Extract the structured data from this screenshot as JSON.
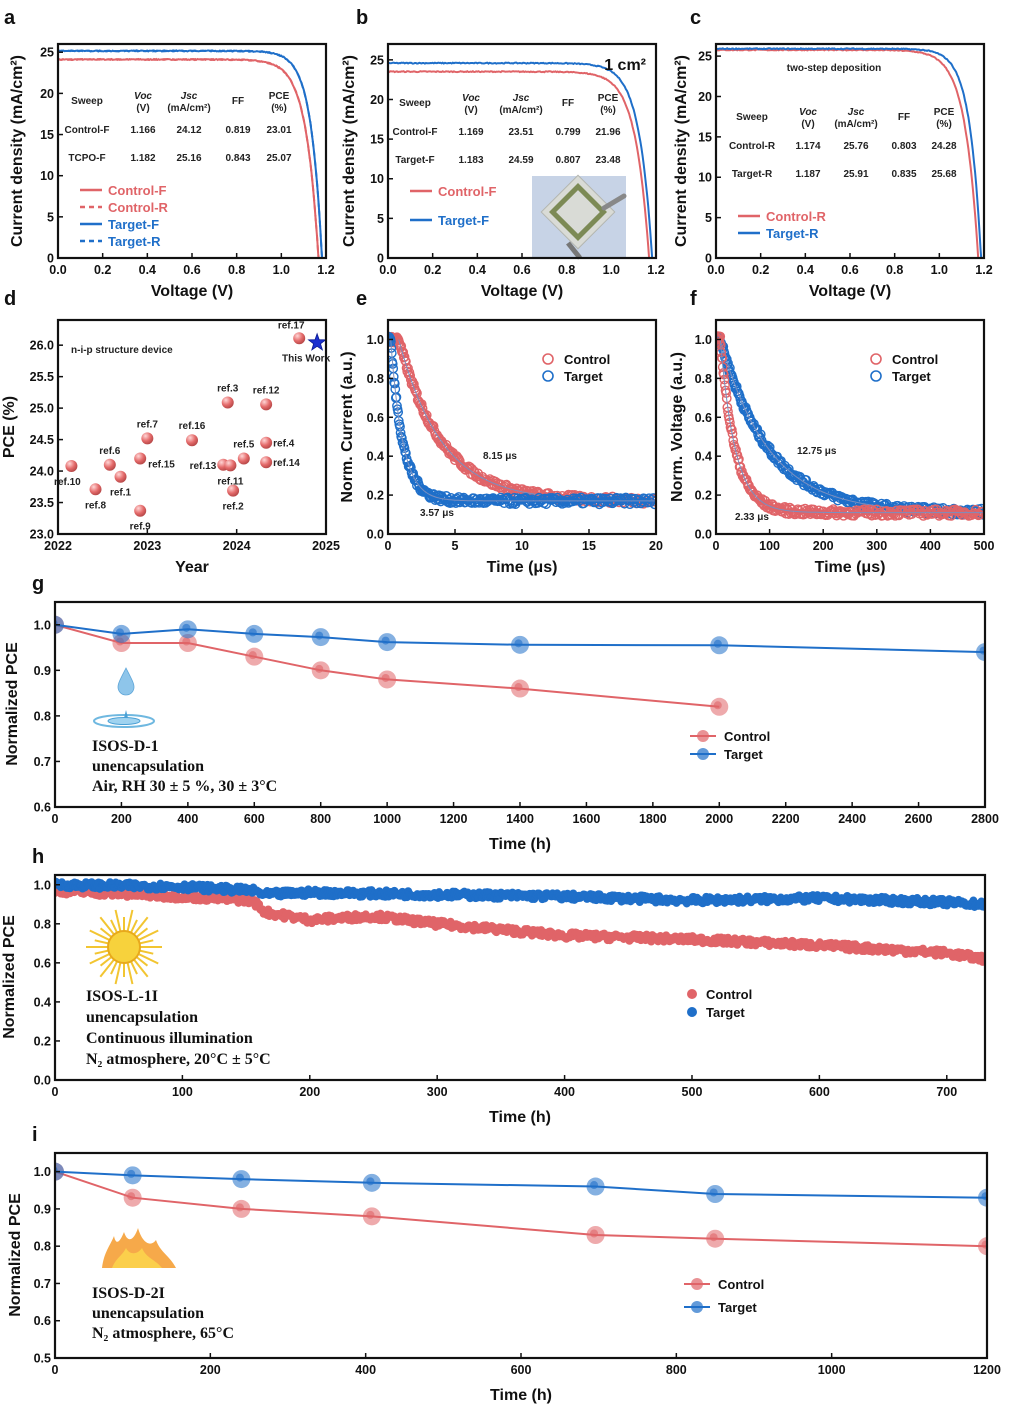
{
  "colors": {
    "control": "#e06468",
    "target": "#1f6fc9",
    "target_light": "#4a90e0",
    "control_light": "#f0999b",
    "this_work": "#1a2fd0"
  },
  "chart_data": [
    {
      "id": "a",
      "panel_label": "a",
      "type": "line",
      "xlabel": "Voltage (V)",
      "ylabel": "Current density (mA/cm²)",
      "xlim": [
        0,
        1.2
      ],
      "ylim": [
        0,
        26
      ],
      "xticks": [
        "0.0",
        "0.2",
        "0.4",
        "0.6",
        "0.8",
        "1.0",
        "1.2"
      ],
      "xtick_values": [
        0,
        0.2,
        0.4,
        0.6,
        0.8,
        1.0,
        1.2
      ],
      "yticks": [
        "0",
        "5",
        "10",
        "15",
        "20",
        "25"
      ],
      "ytick_values": [
        0,
        5,
        10,
        15,
        20,
        25
      ],
      "series": [
        {
          "name": "Control-F",
          "color_key": "control",
          "dash": false,
          "jsc": 24.12,
          "voc": 1.166,
          "ff": 0.819
        },
        {
          "name": "Control-R",
          "color_key": "control",
          "dash": true,
          "jsc": 24.12,
          "voc": 1.166,
          "ff": 0.819
        },
        {
          "name": "Target-F",
          "color_key": "target",
          "dash": false,
          "jsc": 25.16,
          "voc": 1.182,
          "ff": 0.843
        },
        {
          "name": "Target-R",
          "color_key": "target",
          "dash": true,
          "jsc": 25.16,
          "voc": 1.182,
          "ff": 0.843
        }
      ],
      "table": {
        "headers": [
          [
            "Sweep",
            ""
          ],
          [
            "Voc",
            "(V)"
          ],
          [
            "Jsc",
            "(mA/cm²)"
          ],
          [
            "FF",
            ""
          ],
          [
            "PCE",
            "(%)"
          ]
        ],
        "rows": [
          [
            "Control-F",
            "1.166",
            "24.12",
            "0.819",
            "23.01"
          ],
          [
            "TCPO-F",
            "1.182",
            "25.16",
            "0.843",
            "25.07"
          ]
        ]
      },
      "annotation": ""
    },
    {
      "id": "b",
      "panel_label": "b",
      "type": "line",
      "xlabel": "Voltage (V)",
      "ylabel": "Current density (mA/cm²)",
      "xlim": [
        0,
        1.2
      ],
      "ylim": [
        0,
        27
      ],
      "xticks": [
        "0.0",
        "0.2",
        "0.4",
        "0.6",
        "0.8",
        "1.0",
        "1.2"
      ],
      "xtick_values": [
        0,
        0.2,
        0.4,
        0.6,
        0.8,
        1.0,
        1.2
      ],
      "yticks": [
        "0",
        "5",
        "10",
        "15",
        "20",
        "25"
      ],
      "ytick_values": [
        0,
        5,
        10,
        15,
        20,
        25
      ],
      "series": [
        {
          "name": "Control-F",
          "color_key": "control",
          "dash": false,
          "jsc": 23.51,
          "voc": 1.169,
          "ff": 0.799
        },
        {
          "name": "Target-F",
          "color_key": "target",
          "dash": false,
          "jsc": 24.59,
          "voc": 1.183,
          "ff": 0.807
        }
      ],
      "table": {
        "headers": [
          [
            "Sweep",
            ""
          ],
          [
            "Voc",
            "(V)"
          ],
          [
            "Jsc",
            "(mA/cm²)"
          ],
          [
            "FF",
            ""
          ],
          [
            "PCE",
            "(%)"
          ]
        ],
        "rows": [
          [
            "Control-F",
            "1.169",
            "23.51",
            "0.799",
            "21.96"
          ],
          [
            "Target-F",
            "1.183",
            "24.59",
            "0.807",
            "23.48"
          ]
        ]
      },
      "annotation": "1 cm²"
    },
    {
      "id": "c",
      "panel_label": "c",
      "type": "line",
      "xlabel": "Voltage (V)",
      "ylabel": "Current density (mA/cm²)",
      "xlim": [
        0,
        1.2
      ],
      "ylim": [
        0,
        26.5
      ],
      "xticks": [
        "0.0",
        "0.2",
        "0.4",
        "0.6",
        "0.8",
        "1.0",
        "1.2"
      ],
      "xtick_values": [
        0,
        0.2,
        0.4,
        0.6,
        0.8,
        1.0,
        1.2
      ],
      "yticks": [
        "0",
        "5",
        "10",
        "15",
        "20",
        "25"
      ],
      "ytick_values": [
        0,
        5,
        10,
        15,
        20,
        25
      ],
      "series": [
        {
          "name": "Control-R",
          "color_key": "control",
          "dash": false,
          "jsc": 25.76,
          "voc": 1.174,
          "ff": 0.803
        },
        {
          "name": "Target-R",
          "color_key": "target",
          "dash": false,
          "jsc": 25.91,
          "voc": 1.187,
          "ff": 0.835
        }
      ],
      "table": {
        "headers": [
          [
            "Sweep",
            ""
          ],
          [
            "Voc",
            "(V)"
          ],
          [
            "Jsc",
            "(mA/cm²)"
          ],
          [
            "FF",
            ""
          ],
          [
            "PCE",
            "(%)"
          ]
        ],
        "rows": [
          [
            "Control-R",
            "1.174",
            "25.76",
            "0.803",
            "24.28"
          ],
          [
            "Target-R",
            "1.187",
            "25.91",
            "0.835",
            "25.68"
          ]
        ]
      },
      "annotation": "two-step deposition"
    },
    {
      "id": "d",
      "panel_label": "d",
      "type": "scatter",
      "xlabel": "Year",
      "ylabel": "PCE (%)",
      "xlim": [
        2022,
        2025
      ],
      "ylim": [
        23.0,
        26.4
      ],
      "xticks": [
        "2022",
        "2023",
        "2024",
        "2025"
      ],
      "xtick_values": [
        2022,
        2023,
        2024,
        2025
      ],
      "yticks": [
        "23.0",
        "23.5",
        "24.0",
        "24.5",
        "25.0",
        "25.5",
        "26.0"
      ],
      "ytick_values": [
        23.0,
        23.5,
        24.0,
        24.5,
        25.0,
        25.5,
        26.0
      ],
      "annotation": "n-i-p structure device",
      "points": [
        {
          "label": "ref.10",
          "x": 2022.15,
          "y": 24.08,
          "pos": "below-left"
        },
        {
          "label": "ref.8",
          "x": 2022.42,
          "y": 23.71,
          "pos": "below"
        },
        {
          "label": "ref.6",
          "x": 2022.58,
          "y": 24.1,
          "pos": "above"
        },
        {
          "label": "ref.1",
          "x": 2022.7,
          "y": 23.91,
          "pos": "below"
        },
        {
          "label": "ref.15",
          "x": 2022.92,
          "y": 24.2,
          "pos": "below-right"
        },
        {
          "label": "ref.9",
          "x": 2022.92,
          "y": 23.37,
          "pos": "below"
        },
        {
          "label": "ref.7",
          "x": 2023.0,
          "y": 24.52,
          "pos": "above"
        },
        {
          "label": "ref.16",
          "x": 2023.5,
          "y": 24.49,
          "pos": "above"
        },
        {
          "label": "ref.13",
          "x": 2023.85,
          "y": 24.1,
          "pos": "left"
        },
        {
          "label": "ref.3",
          "x": 2023.9,
          "y": 25.09,
          "pos": "above"
        },
        {
          "label": "ref.11",
          "x": 2023.93,
          "y": 24.09,
          "pos": "below"
        },
        {
          "label": "ref.2",
          "x": 2023.96,
          "y": 23.69,
          "pos": "below"
        },
        {
          "label": "ref.5",
          "x": 2024.08,
          "y": 24.2,
          "pos": "above"
        },
        {
          "label": "ref.12",
          "x": 2024.33,
          "y": 25.06,
          "pos": "above"
        },
        {
          "label": "ref.4",
          "x": 2024.33,
          "y": 24.45,
          "pos": "right"
        },
        {
          "label": "ref.14",
          "x": 2024.33,
          "y": 24.14,
          "pos": "right"
        },
        {
          "label": "ref.17",
          "x": 2024.7,
          "y": 26.11,
          "pos": "above-left"
        }
      ],
      "this_work": {
        "label": "This Work",
        "x": 2024.9,
        "y": 26.04
      }
    },
    {
      "id": "e",
      "panel_label": "e",
      "type": "scatter",
      "xlabel": "Time (μs)",
      "ylabel": "Norm. Current (a.u.)",
      "xlim": [
        0,
        20
      ],
      "ylim": [
        0,
        1.1
      ],
      "xticks": [
        "0",
        "5",
        "10",
        "15",
        "20"
      ],
      "xtick_values": [
        0,
        5,
        10,
        15,
        20
      ],
      "yticks": [
        "0.0",
        "0.2",
        "0.4",
        "0.6",
        "0.8",
        "1.0"
      ],
      "ytick_values": [
        0,
        0.2,
        0.4,
        0.6,
        0.8,
        1.0
      ],
      "series": [
        {
          "name": "Control",
          "color_key": "control",
          "tau": 3.2,
          "t0": 0.8,
          "baseline": 0.17,
          "label": "8.15 μs"
        },
        {
          "name": "Target",
          "color_key": "target",
          "tau": 0.9,
          "t0": 0.2,
          "baseline": 0.17,
          "label": "3.57 μs"
        }
      ]
    },
    {
      "id": "f",
      "panel_label": "f",
      "type": "scatter",
      "xlabel": "Time (μs)",
      "ylabel": "Norm. Voltage (a.u.)",
      "xlim": [
        0,
        500
      ],
      "ylim": [
        0,
        1.1
      ],
      "xticks": [
        "0",
        "100",
        "200",
        "300",
        "400",
        "500"
      ],
      "xtick_values": [
        0,
        100,
        200,
        300,
        400,
        500
      ],
      "yticks": [
        "0.0",
        "0.2",
        "0.4",
        "0.6",
        "0.8",
        "1.0"
      ],
      "ytick_values": [
        0,
        0.2,
        0.4,
        0.6,
        0.8,
        1.0
      ],
      "series": [
        {
          "name": "Control",
          "color_key": "control",
          "tau": 28,
          "t0": 8,
          "baseline": 0.11,
          "label": "2.33 μs"
        },
        {
          "name": "Target",
          "color_key": "target",
          "tau": 90,
          "t0": 8,
          "baseline": 0.11,
          "label": "12.75 μs"
        }
      ]
    },
    {
      "id": "g",
      "panel_label": "g",
      "type": "line",
      "xlabel": "Time (h)",
      "ylabel": "Normalized PCE",
      "xlim": [
        0,
        2800
      ],
      "ylim": [
        0.6,
        1.05
      ],
      "xticks": [
        "0",
        "200",
        "400",
        "600",
        "800",
        "1000",
        "1200",
        "1400",
        "1600",
        "1800",
        "2000",
        "2200",
        "2400",
        "2600",
        "2800"
      ],
      "xtick_values": [
        0,
        200,
        400,
        600,
        800,
        1000,
        1200,
        1400,
        1600,
        1800,
        2000,
        2200,
        2400,
        2600,
        2800
      ],
      "yticks": [
        "0.6",
        "0.7",
        "0.8",
        "0.9",
        "1.0"
      ],
      "ytick_values": [
        0.6,
        0.7,
        0.8,
        0.9,
        1.0
      ],
      "series": [
        {
          "name": "Control",
          "color_key": "control",
          "x": [
            0,
            200,
            400,
            600,
            800,
            1000,
            1400,
            2000
          ],
          "y": [
            1.0,
            0.96,
            0.96,
            0.93,
            0.9,
            0.88,
            0.86,
            0.82
          ]
        },
        {
          "name": "Target",
          "color_key": "target",
          "x": [
            0,
            200,
            400,
            600,
            800,
            1000,
            1400,
            2000,
            2800
          ],
          "y": [
            1.0,
            0.98,
            0.99,
            0.98,
            0.973,
            0.962,
            0.956,
            0.955,
            0.94
          ]
        }
      ],
      "annotation": [
        "ISOS-D-1",
        "unencapsulation",
        "Air, RH 30 ± 5 %, 30 ± 3°C"
      ],
      "icon": "water-drop"
    },
    {
      "id": "h",
      "panel_label": "h",
      "type": "scatter",
      "xlabel": "Time (h)",
      "ylabel": "Normalized PCE",
      "xlim": [
        0,
        730
      ],
      "ylim": [
        0,
        1.05
      ],
      "xticks": [
        "0",
        "100",
        "200",
        "300",
        "400",
        "500",
        "600",
        "700"
      ],
      "xtick_values": [
        0,
        100,
        200,
        300,
        400,
        500,
        600,
        700
      ],
      "yticks": [
        "0.0",
        "0.2",
        "0.4",
        "0.6",
        "0.8",
        "1.0"
      ],
      "ytick_values": [
        0,
        0.2,
        0.4,
        0.6,
        0.8,
        1.0
      ],
      "series": [
        {
          "name": "Control",
          "color_key": "control",
          "x": [
            0,
            100,
            155,
            165,
            200,
            250,
            300,
            400,
            500,
            600,
            700,
            730
          ],
          "y": [
            0.97,
            0.94,
            0.92,
            0.86,
            0.82,
            0.84,
            0.8,
            0.74,
            0.72,
            0.69,
            0.65,
            0.62
          ]
        },
        {
          "name": "Target",
          "color_key": "target",
          "x": [
            0,
            100,
            155,
            165,
            200,
            300,
            400,
            500,
            600,
            700,
            730
          ],
          "y": [
            1.0,
            0.99,
            0.97,
            0.95,
            0.96,
            0.95,
            0.94,
            0.92,
            0.93,
            0.91,
            0.9
          ]
        }
      ],
      "annotation": [
        "ISOS-L-1I",
        "unencapsulation",
        "Continuous illumination",
        "N₂ atmosphere, 20°C ± 5°C"
      ],
      "icon": "sun"
    },
    {
      "id": "i",
      "panel_label": "i",
      "type": "line",
      "xlabel": "Time (h)",
      "ylabel": "Normalized PCE",
      "xlim": [
        0,
        1200
      ],
      "ylim": [
        0.5,
        1.05
      ],
      "xticks": [
        "0",
        "200",
        "400",
        "600",
        "800",
        "1000",
        "1200"
      ],
      "xtick_values": [
        0,
        200,
        400,
        600,
        800,
        1000,
        1200
      ],
      "yticks": [
        "0.5",
        "0.6",
        "0.7",
        "0.8",
        "0.9",
        "1.0"
      ],
      "ytick_values": [
        0.5,
        0.6,
        0.7,
        0.8,
        0.9,
        1.0
      ],
      "series": [
        {
          "name": "Control",
          "color_key": "control",
          "x": [
            0,
            100,
            240,
            408,
            696,
            850,
            1200
          ],
          "y": [
            1.0,
            0.93,
            0.9,
            0.88,
            0.83,
            0.82,
            0.8
          ]
        },
        {
          "name": "Target",
          "color_key": "target",
          "x": [
            0,
            100,
            240,
            408,
            696,
            850,
            1200
          ],
          "y": [
            1.0,
            0.99,
            0.98,
            0.97,
            0.96,
            0.94,
            0.93
          ]
        }
      ],
      "annotation": [
        "ISOS-D-2I",
        "unencapsulation",
        "N₂ atmosphere, 65°C"
      ],
      "icon": "flame"
    }
  ]
}
